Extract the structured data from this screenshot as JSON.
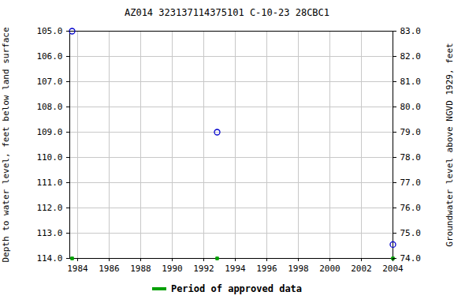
{
  "chart_data": {
    "type": "scatter",
    "title": "AZ014 323137114375101 C-10-23 28CBC1",
    "y_label": "Depth to water level, feet below land surface",
    "y2_label": "Groundwater level above NGVD 1929, feet",
    "series": [
      {
        "color": "#0000cc",
        "marker": "circle",
        "x": [
          1983.65,
          1992.85,
          2004.0
        ],
        "values": [
          105.0,
          109.0,
          113.45
        ]
      },
      {
        "name": "Period of approved data",
        "color": "#00a000",
        "marker": "square",
        "axis": "y",
        "x": [
          1983.65,
          1992.85,
          2004.0
        ],
        "values": [
          114,
          114,
          114
        ]
      }
    ],
    "xlim": [
      1983.5,
      2004
    ],
    "xticks": [
      1984,
      1986,
      1988,
      1990,
      1992,
      1994,
      1996,
      1998,
      2000,
      2002,
      2004
    ],
    "ylim": [
      114,
      105
    ],
    "yticks": [
      {
        "value": 105,
        "label": "105.0"
      },
      {
        "value": 106,
        "label": "106.0"
      },
      {
        "value": 107,
        "label": "107.0"
      },
      {
        "value": 108,
        "label": "108.0"
      },
      {
        "value": 109,
        "label": "109.0"
      },
      {
        "value": 110,
        "label": "110.0"
      },
      {
        "value": 111,
        "label": "111.0"
      },
      {
        "value": 112,
        "label": "112.0"
      },
      {
        "value": 113,
        "label": "113.0"
      },
      {
        "value": 114,
        "label": "114.0"
      }
    ],
    "y2lim": [
      74,
      83
    ],
    "y2ticks": [
      {
        "value": 74,
        "label": "74.0"
      },
      {
        "value": 75,
        "label": "75.0"
      },
      {
        "value": 76,
        "label": "76.0"
      },
      {
        "value": 77,
        "label": "77.0"
      },
      {
        "value": 78,
        "label": "78.0"
      },
      {
        "value": 79,
        "label": "79.0"
      },
      {
        "value": 80,
        "label": "80.0"
      },
      {
        "value": 81,
        "label": "81.0"
      },
      {
        "value": 82,
        "label": "82.0"
      },
      {
        "value": 83,
        "label": "83.0"
      }
    ],
    "grid": true,
    "legend": "bottom"
  }
}
